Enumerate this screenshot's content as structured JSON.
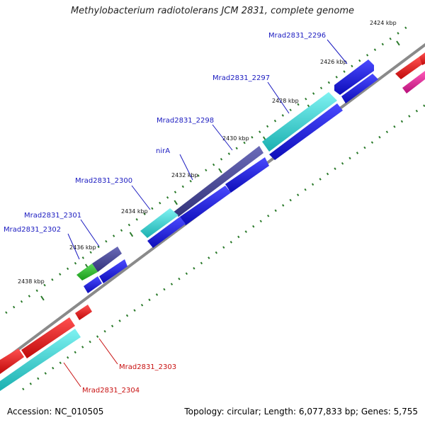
{
  "title": "Methylobacterium radiotolerans JCM 2831, complete genome",
  "footer": {
    "accession": "Accession: NC_010505",
    "summary": "Topology: circular; Length: 6,077,833 bp; Genes: 5,755"
  },
  "colors": {
    "backbone": "#8a8a8a",
    "tick": "#2a7a2a",
    "blue_gene": "#1a1ae0",
    "cyan_gene": "#2fd6d6",
    "purple_gene": "#4a4a9a",
    "green_gene": "#2ab82a",
    "red_gene": "#e81818",
    "pink_gene": "#e0289a",
    "label_blue": "#1a1ac0",
    "label_red": "#c81010"
  },
  "kbp_labels": [
    "2424 kbp",
    "2426 kbp",
    "2428 kbp",
    "2430 kbp",
    "2432 kbp",
    "2434 kbp",
    "2436 kbp",
    "2438 kbp"
  ],
  "gene_labels": [
    {
      "text": "Mrad2831_2296",
      "color": "blue"
    },
    {
      "text": "Mrad2831_2297",
      "color": "blue"
    },
    {
      "text": "Mrad2831_2298",
      "color": "blue"
    },
    {
      "text": "nirA",
      "color": "blue"
    },
    {
      "text": "Mrad2831_2300",
      "color": "blue"
    },
    {
      "text": "Mrad2831_2301",
      "color": "blue"
    },
    {
      "text": "Mrad2831_2302",
      "color": "blue"
    },
    {
      "text": "Mrad2831_2303",
      "color": "red"
    },
    {
      "text": "Mrad2831_2304",
      "color": "red"
    }
  ]
}
